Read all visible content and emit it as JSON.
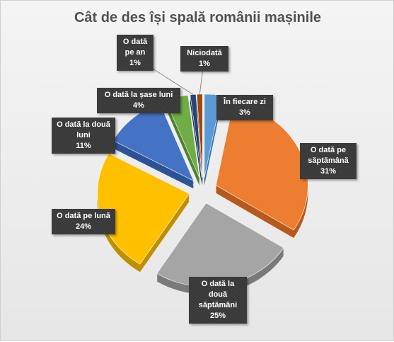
{
  "chart_data": {
    "type": "pie",
    "title": "Cât de des își spală românii mașinile",
    "slices": [
      {
        "label": "În fiecare zi",
        "value": 3,
        "display": "3%",
        "color": "#5b9bd5",
        "dark": "#3e76a8"
      },
      {
        "label": "O dată pe săptămână",
        "value": 31,
        "display": "31%",
        "color": "#ed7d31",
        "dark": "#b55a1c"
      },
      {
        "label": "O dată la două săptămâni",
        "value": 25,
        "display": "25%",
        "color": "#a5a5a5",
        "dark": "#7a7a7a"
      },
      {
        "label": "O dată pe lună",
        "value": 24,
        "display": "24%",
        "color": "#ffc000",
        "dark": "#c08f00"
      },
      {
        "label": "O dată la două luni",
        "value": 11,
        "display": "11%",
        "color": "#4472c4",
        "dark": "#2e5394"
      },
      {
        "label": "O dată la șase luni",
        "value": 4,
        "display": "4%",
        "color": "#70ad47",
        "dark": "#4f8230"
      },
      {
        "label": "O dată pe an",
        "value": 1,
        "display": "1%",
        "color": "#264478",
        "dark": "#172c50"
      },
      {
        "label": "Niciodată",
        "value": 1,
        "display": "1%",
        "color": "#9e480e",
        "dark": "#6e3109"
      }
    ],
    "legend": "none",
    "data_labels": "callouts"
  }
}
